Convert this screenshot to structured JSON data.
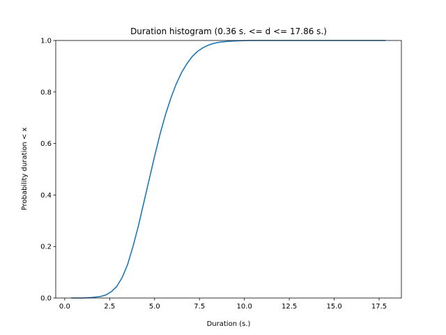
{
  "chart_data": {
    "type": "line",
    "title": "Duration histogram (0.36 s. <= d <= 17.86 s.)",
    "xlabel": "Duration (s.)",
    "ylabel": "Probability duration < x",
    "xlim": [
      -0.5,
      18.74
    ],
    "ylim": [
      0.0,
      1.0
    ],
    "x_ticks": [
      0.0,
      2.5,
      5.0,
      7.5,
      10.0,
      12.5,
      15.0,
      17.5
    ],
    "x_tick_labels": [
      "0.0",
      "2.5",
      "5.0",
      "7.5",
      "10.0",
      "12.5",
      "15.0",
      "17.5"
    ],
    "y_ticks": [
      0.0,
      0.2,
      0.4,
      0.6,
      0.8,
      1.0
    ],
    "y_tick_labels": [
      "0.0",
      "0.2",
      "0.4",
      "0.6",
      "0.8",
      "1.0"
    ],
    "grid": false,
    "series": [
      {
        "color": "#1f77b4",
        "x": [
          0.36,
          1.0,
          1.5,
          2.0,
          2.3,
          2.6,
          2.9,
          3.2,
          3.5,
          3.8,
          4.1,
          4.4,
          4.7,
          5.0,
          5.3,
          5.6,
          5.9,
          6.2,
          6.5,
          6.8,
          7.1,
          7.4,
          7.7,
          8.0,
          8.3,
          8.6,
          9.0,
          9.4,
          9.8,
          10.2,
          10.6,
          11.0,
          12.0,
          13.0,
          14.0,
          15.0,
          16.0,
          17.0,
          17.86
        ],
        "y": [
          0.0,
          0.0,
          0.002,
          0.006,
          0.012,
          0.025,
          0.045,
          0.08,
          0.13,
          0.2,
          0.28,
          0.37,
          0.46,
          0.55,
          0.635,
          0.71,
          0.775,
          0.83,
          0.875,
          0.91,
          0.938,
          0.958,
          0.972,
          0.982,
          0.989,
          0.993,
          0.996,
          0.998,
          0.999,
          1.0,
          1.0,
          1.0,
          1.0,
          1.0,
          1.0,
          1.0,
          1.0,
          1.0,
          1.0
        ]
      }
    ]
  }
}
